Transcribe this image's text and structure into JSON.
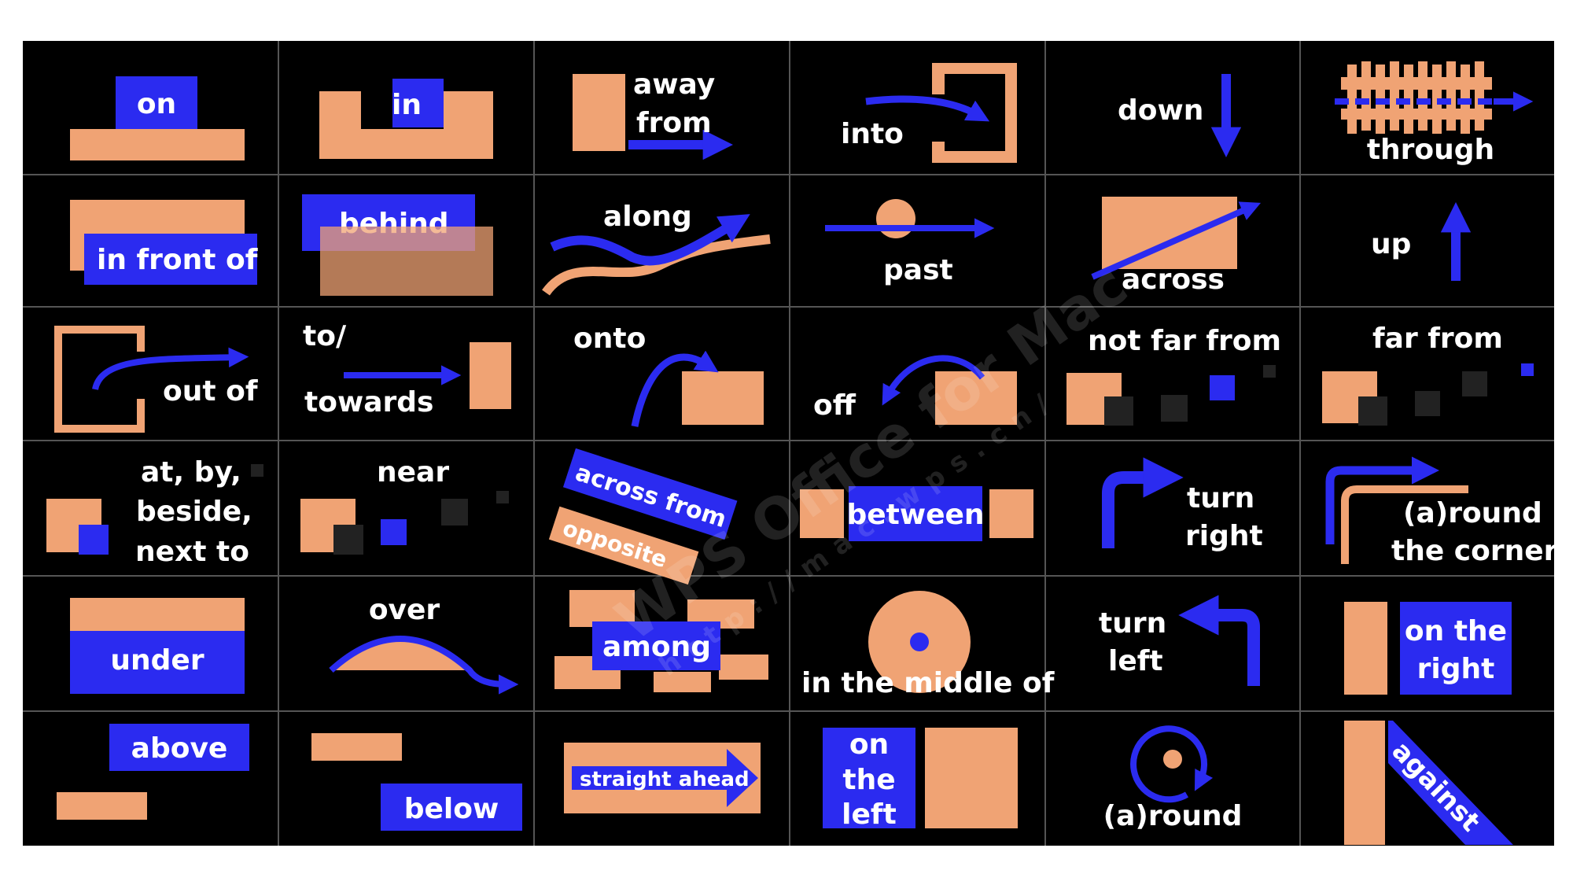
{
  "colors": {
    "background": "#000000",
    "blue": "#2b2bf0",
    "peach": "#f0a374",
    "text": "#ffffff",
    "grid": "#555555"
  },
  "cells": {
    "on": "on",
    "in": "in",
    "away_from_1": "away",
    "away_from_2": "from",
    "into": "into",
    "down": "down",
    "through": "through",
    "in_front_of": "in front of",
    "behind": "behind",
    "along": "along",
    "past": "past",
    "across": "across",
    "up": "up",
    "out_of": "out of",
    "to_towards_1": "to/",
    "to_towards_2": "towards",
    "onto": "onto",
    "off": "off",
    "not_far_from": "not far from",
    "far_from": "far from",
    "at_by_1": "at, by,",
    "at_by_2": "beside,",
    "at_by_3": "next to",
    "near": "near",
    "across_from": "across from",
    "opposite": "opposite",
    "between": "between",
    "turn_right_1": "turn",
    "turn_right_2": "right",
    "round_corner_1": "(a)round",
    "round_corner_2": "the corner",
    "under": "under",
    "over": "over",
    "among": "among",
    "in_the_middle_of": "in the middle of",
    "turn_left_1": "turn",
    "turn_left_2": "left",
    "on_the_right_1": "on the",
    "on_the_right_2": "right",
    "above": "above",
    "below": "below",
    "straight_ahead": "straight ahead",
    "on_the_left_1": "on",
    "on_the_left_2": "the",
    "on_the_left_3": "left",
    "around": "(a)round",
    "against": "against"
  },
  "watermark": {
    "line1": "WPS Office for Mac",
    "line2": "http://mac.wps.cn/"
  }
}
